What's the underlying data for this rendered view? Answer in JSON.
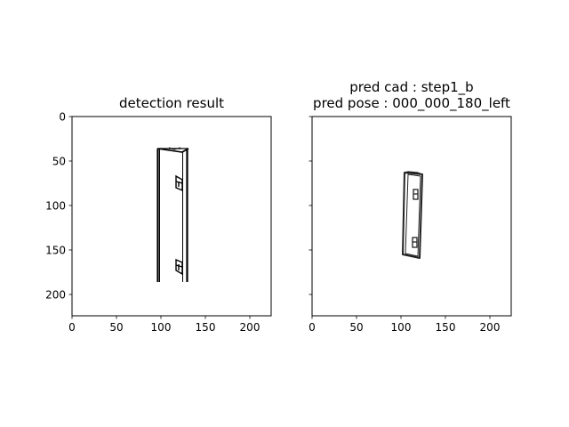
{
  "chart_data": [
    {
      "type": "image",
      "title_lines": [
        "detection result"
      ],
      "xlim": [
        0,
        224
      ],
      "ylim": [
        0,
        224
      ],
      "y_inverted": true,
      "xticks": [
        0,
        50,
        100,
        150,
        200
      ],
      "yticks": [
        0,
        50,
        100,
        150,
        200
      ],
      "show_ytick_labels": true,
      "image_content": "line drawing of a tall rectangular panel with two small brackets"
    },
    {
      "type": "image",
      "title_lines": [
        "pred cad : step1_b",
        "pred pose : 000_000_180_left"
      ],
      "xlim": [
        0,
        224
      ],
      "ylim": [
        0,
        224
      ],
      "y_inverted": true,
      "xticks": [
        0,
        50,
        100,
        150,
        200
      ],
      "yticks": [
        0,
        50,
        100,
        150,
        200
      ],
      "show_ytick_labels": false,
      "image_content": "rendered CAD line drawing of a slanted rectangular panel with two small brackets"
    }
  ]
}
